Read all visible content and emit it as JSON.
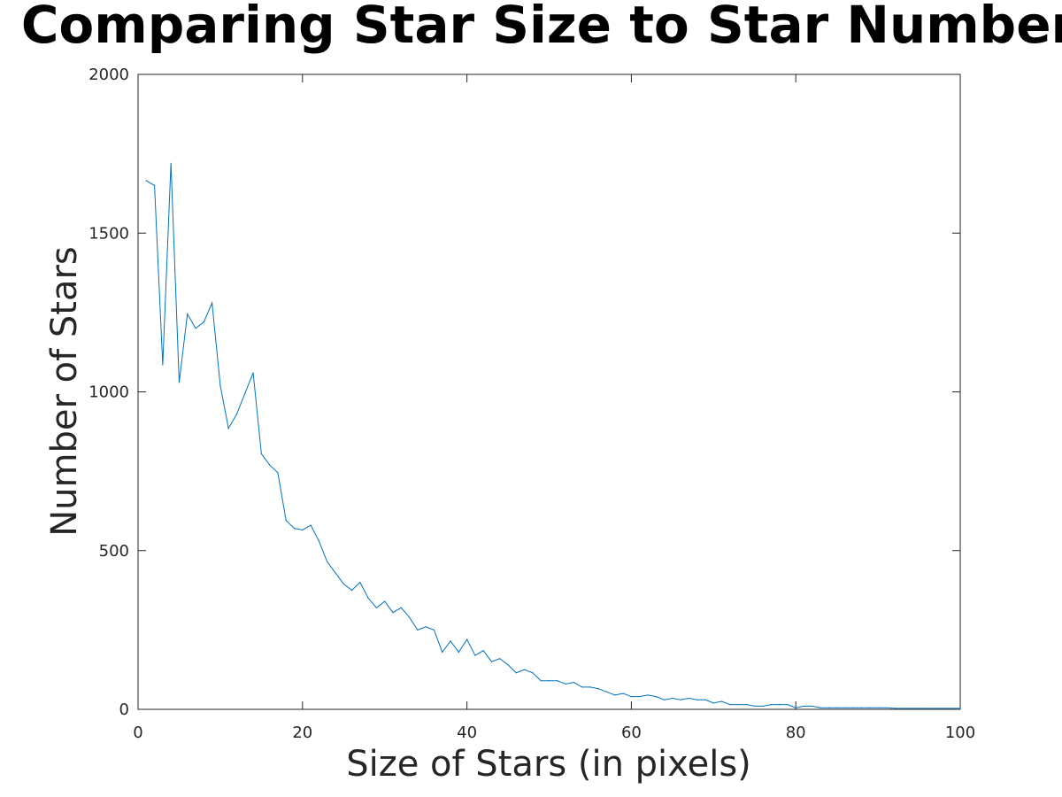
{
  "chart_data": {
    "type": "line",
    "title": "Comparing Star Size to Star Number",
    "xlabel": "Size of Stars (in pixels)",
    "ylabel": "Number of Stars",
    "xlim": [
      0,
      100
    ],
    "ylim": [
      0,
      2000
    ],
    "x_ticks": [
      "0",
      "20",
      "40",
      "60",
      "80",
      "100"
    ],
    "y_ticks": [
      "0",
      "500",
      "1000",
      "1500",
      "2000"
    ],
    "grid": false,
    "line_color": "#0072BD",
    "series": [
      {
        "x": [
          1,
          2,
          3,
          4,
          5,
          6,
          7,
          8,
          9,
          10,
          11,
          12,
          13,
          14,
          15,
          16,
          17,
          18,
          19,
          20,
          21,
          22,
          23,
          24,
          25,
          26,
          27,
          28,
          29,
          30,
          31,
          32,
          33,
          34,
          35,
          36,
          37,
          38,
          39,
          40,
          41,
          42,
          43,
          44,
          45,
          46,
          47,
          48,
          49,
          50,
          51,
          52,
          53,
          54,
          55,
          56,
          57,
          58,
          59,
          60,
          61,
          62,
          63,
          64,
          65,
          66,
          67,
          68,
          69,
          70,
          71,
          72,
          73,
          74,
          75,
          76,
          77,
          78,
          79,
          80,
          81,
          82,
          83,
          84,
          85,
          86,
          87,
          88,
          89,
          90,
          91,
          92,
          93,
          94,
          95,
          96,
          97,
          98,
          99,
          100
        ],
        "values": [
          1665,
          1650,
          1085,
          1720,
          1030,
          1245,
          1200,
          1220,
          1280,
          1020,
          885,
          930,
          995,
          1060,
          805,
          770,
          745,
          595,
          570,
          565,
          580,
          530,
          465,
          430,
          395,
          375,
          400,
          350,
          320,
          340,
          305,
          320,
          290,
          250,
          260,
          250,
          180,
          215,
          180,
          220,
          170,
          185,
          150,
          160,
          140,
          115,
          125,
          115,
          90,
          90,
          90,
          80,
          85,
          70,
          70,
          65,
          55,
          45,
          50,
          40,
          40,
          45,
          40,
          30,
          35,
          30,
          35,
          30,
          30,
          20,
          25,
          15,
          15,
          15,
          10,
          10,
          15,
          15,
          15,
          5,
          10,
          10,
          5,
          5,
          5,
          5,
          5,
          5,
          5,
          5,
          5,
          3,
          3,
          3,
          3,
          3,
          3,
          3,
          3,
          3
        ]
      }
    ]
  }
}
